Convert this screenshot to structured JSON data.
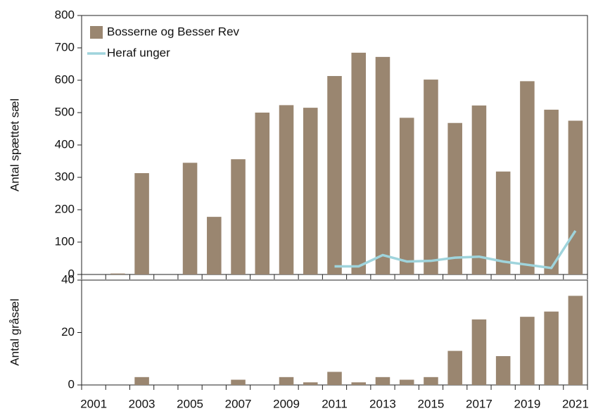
{
  "chart_data": [
    {
      "type": "bar",
      "y_label": "Antal spættet sæl",
      "ylim": [
        0,
        800
      ],
      "yticks": [
        0,
        100,
        200,
        300,
        400,
        500,
        600,
        700,
        800
      ],
      "series": [
        {
          "name": "Bosserne og Besser Rev",
          "type": "bar",
          "color": "#9a8670",
          "values": [
            null,
            3,
            313,
            null,
            345,
            178,
            356,
            500,
            523,
            515,
            613,
            685,
            672,
            484,
            602,
            468,
            522,
            318,
            597,
            509,
            475
          ]
        },
        {
          "name": "Heraf unger",
          "type": "line",
          "color": "#9fd4dc",
          "values": [
            null,
            null,
            null,
            null,
            null,
            null,
            null,
            null,
            null,
            null,
            25,
            25,
            60,
            40,
            42,
            52,
            55,
            40,
            30,
            20,
            135
          ]
        }
      ]
    },
    {
      "type": "bar",
      "y_label": "Antal gråsæl",
      "categories": [
        "2001",
        null,
        "2003",
        null,
        "2005",
        null,
        "2007",
        null,
        "2009",
        null,
        "2011",
        null,
        "2013",
        null,
        "2015",
        null,
        "2017",
        null,
        "2019",
        null,
        "2021"
      ],
      "ylim": [
        0,
        40
      ],
      "yticks": [
        0,
        20,
        40
      ],
      "series": [
        {
          "color": "#9a8670",
          "type": "bar",
          "values": [
            null,
            null,
            3,
            null,
            null,
            null,
            2,
            null,
            3,
            1,
            5,
            1,
            3,
            2,
            3,
            13,
            25,
            11,
            26,
            28,
            34
          ]
        }
      ]
    }
  ]
}
